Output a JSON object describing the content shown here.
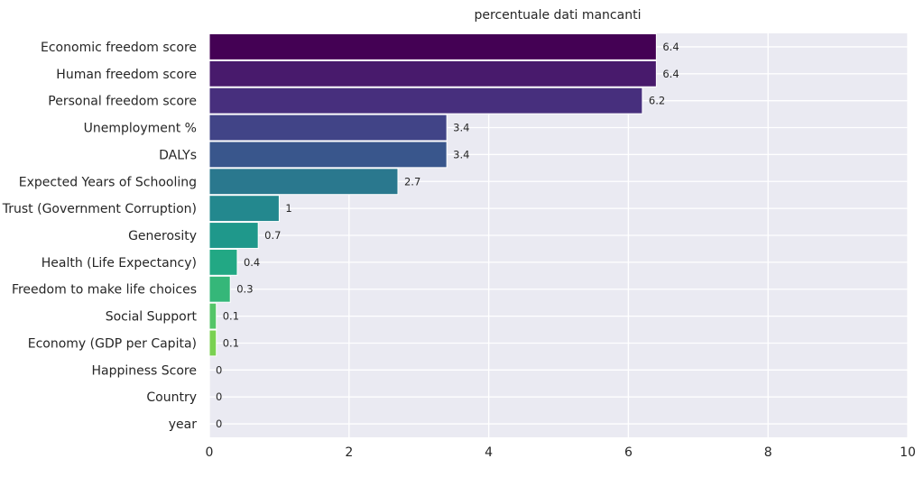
{
  "chart_data": {
    "type": "bar",
    "orientation": "horizontal",
    "title": "percentuale dati mancanti",
    "xlabel": "",
    "ylabel": "",
    "xlim": [
      0,
      10
    ],
    "xticks": [
      "0",
      "2",
      "4",
      "6",
      "8",
      "10"
    ],
    "grid": true,
    "background": "#eaeaf2",
    "categories": [
      "Economic freedom score",
      "Human freedom score",
      "Personal freedom score",
      "Unemployment %",
      "DALYs",
      "Expected Years of Schooling",
      "Trust (Government Corruption)",
      "Generosity",
      "Health (Life Expectancy)",
      "Freedom to make life choices",
      "Social Support",
      "Economy (GDP per Capita)",
      "Happiness Score",
      "Country",
      "year"
    ],
    "values": [
      6.4,
      6.4,
      6.2,
      3.4,
      3.4,
      2.7,
      1,
      0.7,
      0.4,
      0.3,
      0.1,
      0.1,
      0,
      0,
      0
    ],
    "value_labels": [
      "6.4",
      "6.4",
      "6.2",
      "3.4",
      "3.4",
      "2.7",
      "1",
      "0.7",
      "0.4",
      "0.3",
      "0.1",
      "0.1",
      "0",
      "0",
      "0"
    ],
    "colors": [
      "#440154",
      "#481a6c",
      "#472f7d",
      "#414487",
      "#39568c",
      "#2a788e",
      "#23888e",
      "#1f988b",
      "#22a884",
      "#35b779",
      "#54c568",
      "#7ad151",
      "#a5db36",
      "#d2e21b",
      "#fde725"
    ],
    "colormap": "viridis"
  }
}
